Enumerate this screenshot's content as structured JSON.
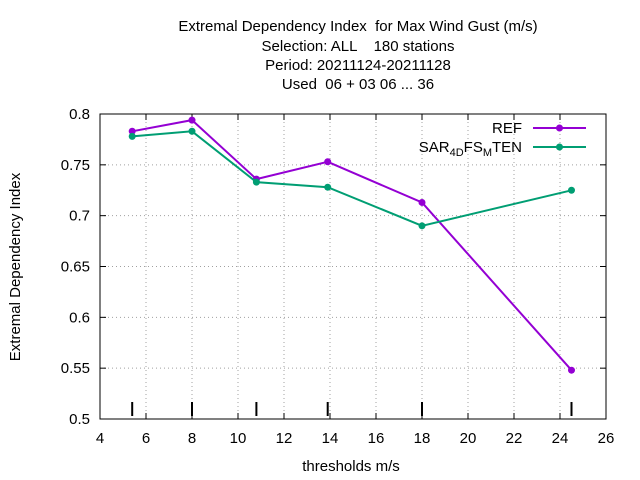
{
  "chart_data": {
    "type": "line",
    "title_lines": [
      "Extremal Dependency Index  for Max Wind Gust (m/s)",
      "Selection: ALL    180 stations",
      "Period: 20211124-20211128",
      "Used  06 + 03 06 ... 36"
    ],
    "xlabel": "thresholds m/s",
    "ylabel": "Extremal Dependency Index",
    "xlim": [
      4,
      26
    ],
    "ylim": [
      0.5,
      0.8
    ],
    "xticks": [
      4,
      6,
      8,
      10,
      12,
      14,
      16,
      18,
      20,
      22,
      24,
      26
    ],
    "yticks": [
      0.5,
      0.55,
      0.6,
      0.65,
      0.7,
      0.75,
      0.8
    ],
    "ytick_labels": [
      "0.5",
      "0.55",
      "0.6",
      "0.65",
      "0.7",
      "0.75",
      "0.8"
    ],
    "grid": true,
    "legend_position": "top-right",
    "threshold_markers": [
      5.4,
      8.0,
      10.8,
      13.9,
      18.0,
      24.5
    ],
    "series": [
      {
        "name": "REF",
        "color": "#9400d3",
        "x": [
          5.4,
          8.0,
          10.8,
          13.9,
          18.0,
          24.5
        ],
        "y": [
          0.783,
          0.794,
          0.736,
          0.753,
          0.713,
          0.548
        ]
      },
      {
        "name_parts": [
          "SAR",
          "4D",
          "FS",
          "M",
          "TEN"
        ],
        "color": "#009e73",
        "x": [
          5.4,
          8.0,
          10.8,
          13.9,
          18.0,
          24.5
        ],
        "y": [
          0.778,
          0.783,
          0.733,
          0.728,
          0.69,
          0.725
        ]
      }
    ]
  }
}
